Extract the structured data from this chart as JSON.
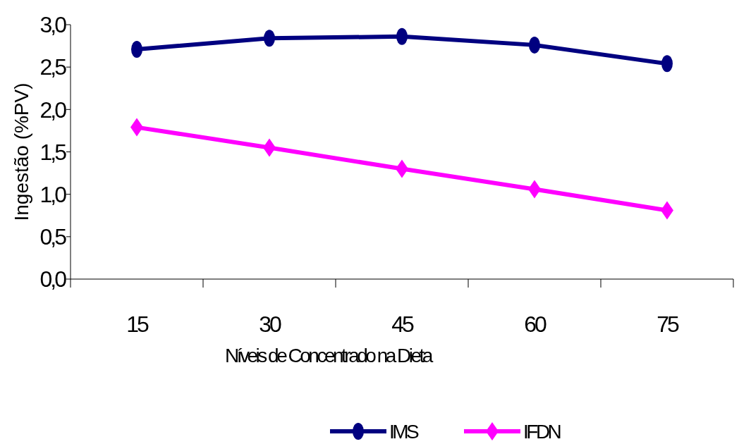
{
  "chart_data": {
    "type": "line",
    "xlabel": "Níveis de Concentrado na Dieta",
    "ylabel": "Ingestão (%PV)",
    "categories": [
      "15",
      "30",
      "45",
      "60",
      "75"
    ],
    "series": [
      {
        "name": "IMS",
        "color": "#000080",
        "marker": "circle",
        "values": [
          2.71,
          2.84,
          2.86,
          2.76,
          2.54
        ]
      },
      {
        "name": "IFDN",
        "color": "#ff00ff",
        "marker": "diamond",
        "values": [
          1.79,
          1.55,
          1.3,
          1.06,
          0.81
        ]
      }
    ],
    "ylim": [
      0,
      3
    ],
    "yticks": [
      {
        "value": 0,
        "label": "0,0"
      },
      {
        "value": 0.5,
        "label": "0,5"
      },
      {
        "value": 1,
        "label": "1,0"
      },
      {
        "value": 1.5,
        "label": "1,5"
      },
      {
        "value": 2,
        "label": "2,0"
      },
      {
        "value": 2.5,
        "label": "2,5"
      },
      {
        "value": 3,
        "label": "3,0"
      }
    ],
    "grid": false,
    "legend": "bottom"
  }
}
